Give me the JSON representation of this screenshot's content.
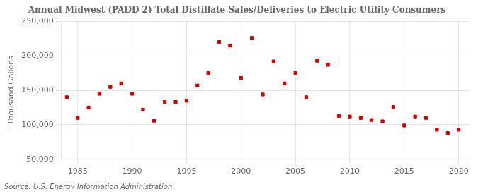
{
  "chart_data": {
    "type": "scatter",
    "title": "Annual Midwest (PADD 2) Total Distillate Sales/Deliveries to Electric Utility Consumers",
    "ylabel": "Thousand Gallons",
    "annotations": [
      "Source: U.S. Energy Information Administration"
    ],
    "x": [
      1984,
      1985,
      1986,
      1987,
      1988,
      1989,
      1990,
      1991,
      1992,
      1993,
      1994,
      1995,
      1996,
      1997,
      1998,
      1999,
      2000,
      2001,
      2002,
      2003,
      2004,
      2005,
      2006,
      2007,
      2008,
      2009,
      2010,
      2011,
      2012,
      2013,
      2014,
      2015,
      2016,
      2017,
      2018,
      2019,
      2020
    ],
    "values": [
      140000,
      110000,
      125000,
      145000,
      155000,
      160000,
      145000,
      122000,
      106000,
      133000,
      133000,
      135000,
      157000,
      175000,
      220000,
      215000,
      168000,
      226000,
      144000,
      192000,
      160000,
      175000,
      140000,
      193000,
      187000,
      113000,
      112000,
      110000,
      107000,
      105000,
      126000,
      99000,
      112000,
      110000,
      93000,
      88000,
      93000
    ],
    "color": "#cc0000",
    "marker": "square",
    "xlim": [
      1983.5,
      2021
    ],
    "xticks": [
      1985,
      1990,
      1995,
      2000,
      2005,
      2010,
      2015,
      2020
    ],
    "ylim": [
      50000,
      250000
    ],
    "yticks": [
      {
        "value": 50000,
        "label": "50,000"
      },
      {
        "value": 100000,
        "label": "100,000"
      },
      {
        "value": 150000,
        "label": "150,000"
      },
      {
        "value": 200000,
        "label": "200,000"
      },
      {
        "value": 250000,
        "label": "250,000"
      }
    ],
    "grid": true
  }
}
